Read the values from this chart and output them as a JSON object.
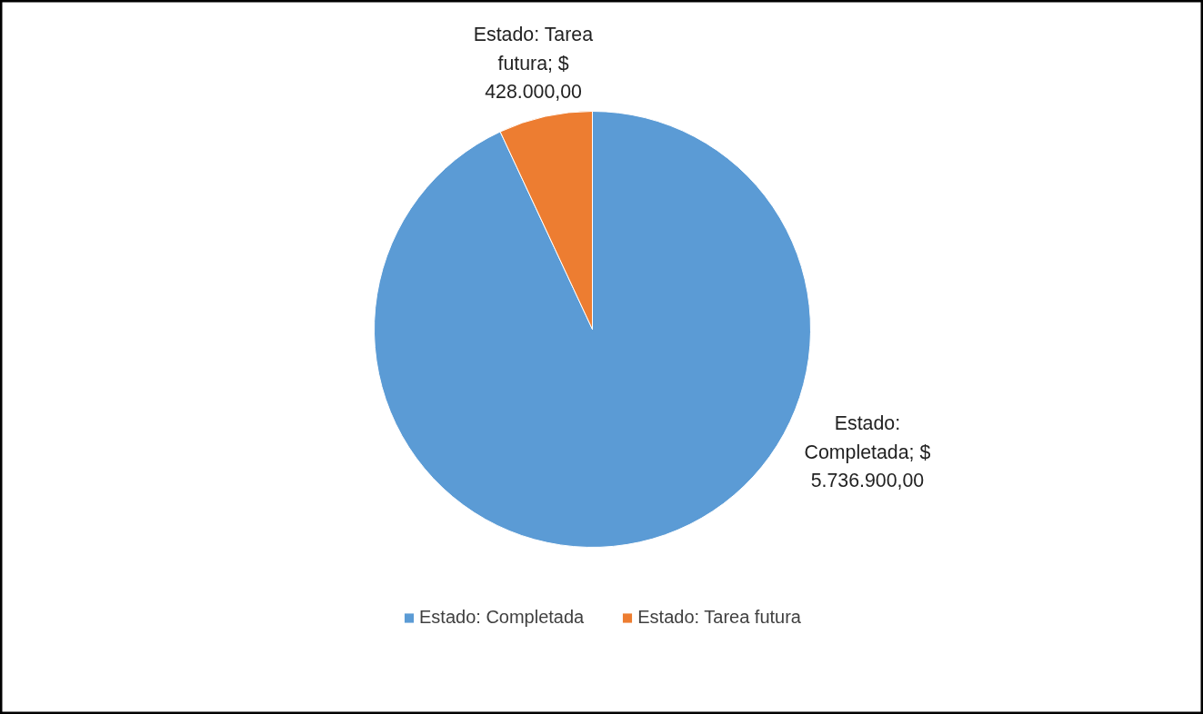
{
  "chart_data": {
    "type": "pie",
    "categories": [
      "Estado: Completada",
      "Estado: Tarea futura"
    ],
    "values": [
      5736900,
      428000
    ],
    "colors": [
      "#5b9bd5",
      "#ed7d31"
    ],
    "value_labels": [
      "Estado: Completada; $ 5.736.900,00",
      "Estado: Tarea futura; $ 428.000,00"
    ],
    "legend": "bottom"
  }
}
